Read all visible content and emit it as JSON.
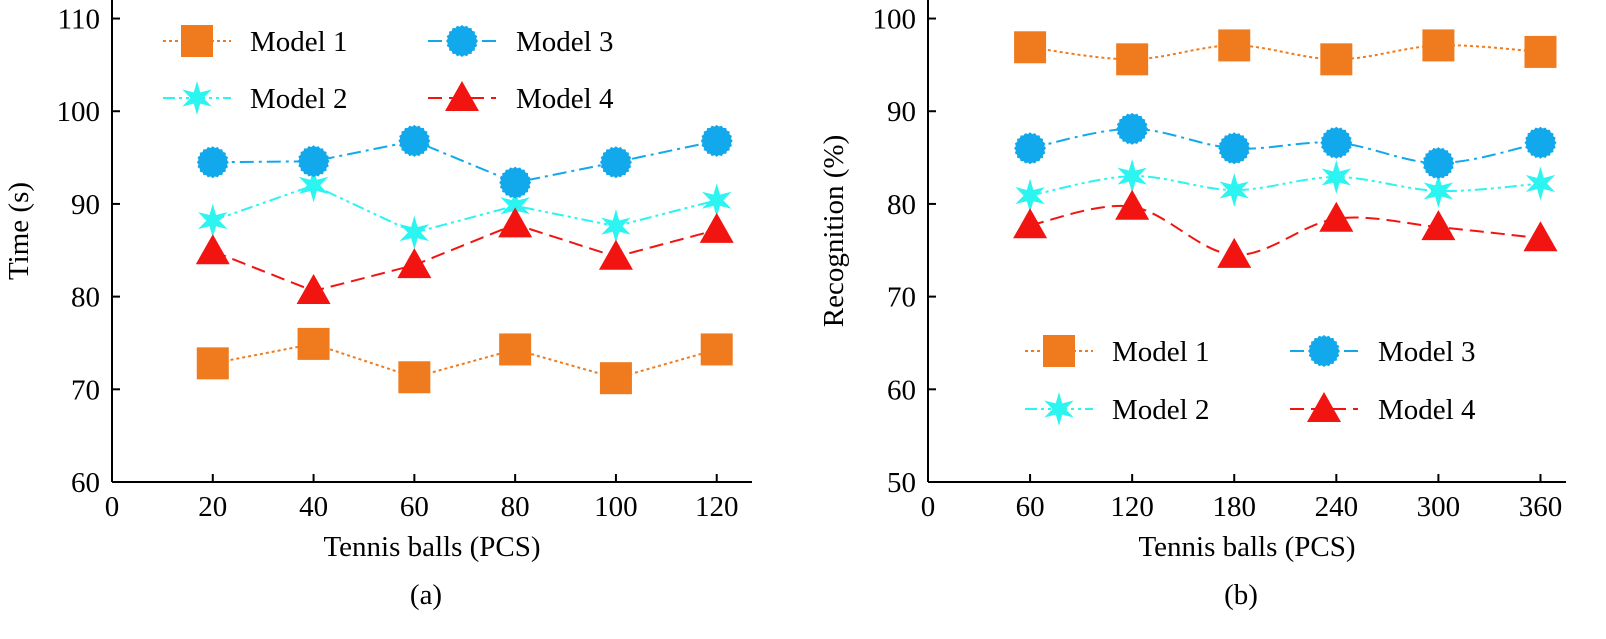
{
  "colors": {
    "model1": "#ef7b1e",
    "model2": "#2cf4f0",
    "model3": "#12a9ec",
    "model4": "#f21411"
  },
  "chart_data": [
    {
      "type": "line",
      "caption": "(a)",
      "xlabel": "Tennis balls (PCS)",
      "ylabel": "Time (s)",
      "x": [
        20,
        40,
        60,
        80,
        100,
        120
      ],
      "xlim": [
        0,
        127
      ],
      "ylim": [
        60,
        112
      ],
      "xticks": [
        0,
        20,
        40,
        60,
        80,
        100,
        120
      ],
      "yticks": [
        60,
        70,
        80,
        90,
        100,
        110
      ],
      "smooth": false,
      "legend_position": "top-left",
      "series": [
        {
          "name": "Model 1",
          "marker": "square",
          "dash": "dotted",
          "color_key": "model1",
          "values": [
            72.8,
            74.9,
            71.3,
            74.3,
            71.2,
            74.3
          ]
        },
        {
          "name": "Model 2",
          "marker": "star",
          "dash": "dash-dot-dot",
          "color_key": "model2",
          "values": [
            88.2,
            92.0,
            86.9,
            89.8,
            87.6,
            90.4
          ]
        },
        {
          "name": "Model 3",
          "marker": "circle",
          "dash": "dash-dot",
          "color_key": "model3",
          "values": [
            94.5,
            94.6,
            96.8,
            92.3,
            94.5,
            96.8
          ]
        },
        {
          "name": "Model 4",
          "marker": "triangle",
          "dash": "dashed",
          "color_key": "model4",
          "values": [
            84.9,
            80.6,
            83.4,
            87.8,
            84.3,
            87.2
          ]
        }
      ]
    },
    {
      "type": "line",
      "caption": "(b)",
      "xlabel": "Tennis balls (PCS)",
      "ylabel": "Recognition (%)",
      "x": [
        60,
        120,
        180,
        240,
        300,
        360
      ],
      "xlim": [
        0,
        375
      ],
      "ylim": [
        50,
        102
      ],
      "xticks": [
        0,
        60,
        120,
        180,
        240,
        300,
        360
      ],
      "yticks": [
        50,
        60,
        70,
        80,
        90,
        100
      ],
      "smooth": true,
      "legend_position": "bottom",
      "series": [
        {
          "name": "Model 1",
          "marker": "square",
          "dash": "dotted",
          "color_key": "model1",
          "values": [
            96.9,
            95.6,
            97.1,
            95.6,
            97.1,
            96.4
          ]
        },
        {
          "name": "Model 2",
          "marker": "star",
          "dash": "dash-dot-dot",
          "color_key": "model2",
          "values": [
            80.9,
            83.0,
            81.5,
            82.9,
            81.4,
            82.2
          ]
        },
        {
          "name": "Model 3",
          "marker": "circle",
          "dash": "dash-dot",
          "color_key": "model3",
          "values": [
            86.0,
            88.1,
            86.0,
            86.6,
            84.4,
            86.6
          ]
        },
        {
          "name": "Model 4",
          "marker": "triangle",
          "dash": "dashed",
          "color_key": "model4",
          "values": [
            77.7,
            79.7,
            74.5,
            78.4,
            77.5,
            76.3
          ]
        }
      ]
    }
  ]
}
